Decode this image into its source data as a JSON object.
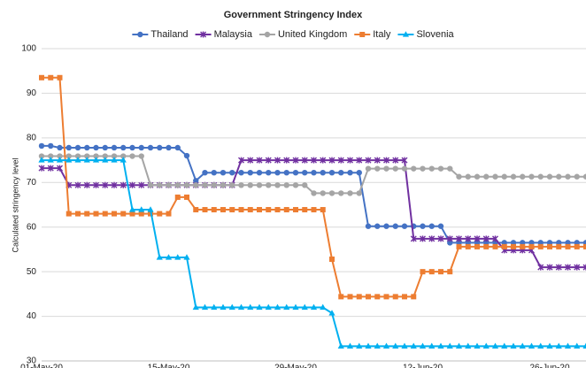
{
  "chart_data": {
    "type": "line",
    "title": "Government Stringency Index",
    "ylabel": "Calculated stringency level",
    "categories": [
      "01-May-20",
      null,
      null,
      null,
      null,
      null,
      null,
      null,
      null,
      null,
      null,
      null,
      null,
      null,
      "15-May-20",
      null,
      null,
      null,
      null,
      null,
      null,
      null,
      null,
      null,
      null,
      null,
      null,
      null,
      "29-May-20",
      null,
      null,
      null,
      null,
      null,
      null,
      null,
      null,
      null,
      null,
      null,
      null,
      null,
      "12-Jun-20",
      null,
      null,
      null,
      null,
      null,
      null,
      null,
      null,
      null,
      null,
      null,
      null,
      null,
      "26-Jun-20",
      null,
      null,
      null,
      null
    ],
    "series": [
      {
        "name": "Thailand",
        "color": "#4472c4",
        "marker": "circle",
        "values": [
          78.2,
          78.2,
          77.8,
          77.8,
          77.8,
          77.8,
          77.8,
          77.8,
          77.8,
          77.8,
          77.8,
          77.8,
          77.8,
          77.8,
          77.8,
          77.8,
          76,
          70.4,
          72.2,
          72.2,
          72.2,
          72.2,
          72.2,
          72.2,
          72.2,
          72.2,
          72.2,
          72.2,
          72.2,
          72.2,
          72.2,
          72.2,
          72.2,
          72.2,
          72.2,
          72.2,
          60.2,
          60.2,
          60.2,
          60.2,
          60.2,
          60.2,
          60.2,
          60.2,
          60.2,
          56.5,
          56.5,
          56.5,
          56.5,
          56.5,
          56.5,
          56.5,
          56.5,
          56.5,
          56.5,
          56.5,
          56.5,
          56.5,
          56.5,
          56.5,
          56.5
        ]
      },
      {
        "name": "Malaysia",
        "color": "#7030a0",
        "marker": "star",
        "values": [
          73.2,
          73.2,
          73.2,
          69.4,
          69.4,
          69.4,
          69.4,
          69.4,
          69.4,
          69.4,
          69.4,
          69.4,
          69.4,
          69.4,
          69.4,
          69.4,
          69.4,
          69.4,
          69.4,
          69.4,
          69.4,
          69.4,
          75,
          75,
          75,
          75,
          75,
          75,
          75,
          75,
          75,
          75,
          75,
          75,
          75,
          75,
          75,
          75,
          75,
          75,
          75,
          57.4,
          57.4,
          57.4,
          57.4,
          57.4,
          57.4,
          57.4,
          57.4,
          57.4,
          57.4,
          54.8,
          54.8,
          54.8,
          54.8,
          51,
          51,
          51,
          51,
          51,
          51
        ]
      },
      {
        "name": "United Kingdom",
        "color": "#a5a5a5",
        "marker": "circle",
        "values": [
          75.9,
          75.9,
          75.9,
          75.9,
          75.9,
          75.9,
          75.9,
          75.9,
          75.9,
          75.9,
          75.9,
          75.9,
          69.4,
          69.4,
          69.4,
          69.4,
          69.4,
          69.4,
          69.4,
          69.4,
          69.4,
          69.4,
          69.4,
          69.4,
          69.4,
          69.4,
          69.4,
          69.4,
          69.4,
          69.4,
          67.6,
          67.6,
          67.6,
          67.6,
          67.6,
          67.6,
          73.1,
          73.1,
          73.1,
          73.1,
          73.1,
          73.1,
          73.1,
          73.1,
          73.1,
          73.1,
          71.3,
          71.3,
          71.3,
          71.3,
          71.3,
          71.3,
          71.3,
          71.3,
          71.3,
          71.3,
          71.3,
          71.3,
          71.3,
          71.3,
          71.3
        ]
      },
      {
        "name": "Italy",
        "color": "#ed7d31",
        "marker": "square",
        "values": [
          93.5,
          93.5,
          93.5,
          63,
          63,
          63,
          63,
          63,
          63,
          63,
          63,
          63,
          63,
          63,
          63,
          66.7,
          66.7,
          63.9,
          63.9,
          63.9,
          63.9,
          63.9,
          63.9,
          63.9,
          63.9,
          63.9,
          63.9,
          63.9,
          63.9,
          63.9,
          63.9,
          63.9,
          52.8,
          44.4,
          44.4,
          44.4,
          44.4,
          44.4,
          44.4,
          44.4,
          44.4,
          44.4,
          50,
          50,
          50,
          50,
          55.6,
          55.6,
          55.6,
          55.6,
          55.6,
          55.6,
          55.6,
          55.6,
          55.6,
          55.6,
          55.6,
          55.6,
          55.6,
          55.6,
          55.6
        ]
      },
      {
        "name": "Slovenia",
        "color": "#00b0f0",
        "marker": "triangle",
        "values": [
          75,
          75,
          75,
          75,
          75,
          75,
          75,
          75,
          75,
          75,
          63.9,
          63.9,
          63.9,
          53.2,
          53.2,
          53.2,
          53.2,
          42,
          42,
          42,
          42,
          42,
          42,
          42,
          42,
          42,
          42,
          42,
          42,
          42,
          42,
          42,
          40.7,
          33.3,
          33.3,
          33.3,
          33.3,
          33.3,
          33.3,
          33.3,
          33.3,
          33.3,
          33.3,
          33.3,
          33.3,
          33.3,
          33.3,
          33.3,
          33.3,
          33.3,
          33.3,
          33.3,
          33.3,
          33.3,
          33.3,
          33.3,
          33.3,
          33.3,
          33.3,
          33.3,
          33.3
        ]
      }
    ],
    "ylim": [
      30,
      100
    ],
    "yticks": [
      30,
      40,
      50,
      60,
      70,
      80,
      90,
      100
    ],
    "grid": true,
    "legend": "top"
  }
}
